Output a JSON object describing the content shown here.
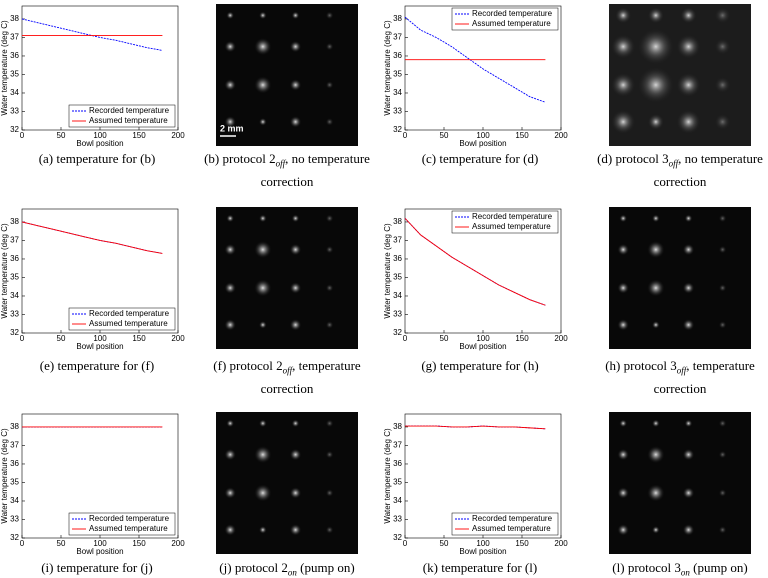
{
  "chart_data": [
    {
      "type": "line",
      "xlabel": "Bowl position",
      "ylabel": "Water temperature (deg C)",
      "x": [
        0,
        20,
        40,
        60,
        80,
        100,
        120,
        140,
        160,
        180
      ],
      "xlim": [
        0,
        200
      ],
      "xticks": [
        0,
        50,
        100,
        150,
        200
      ],
      "ylim": [
        32,
        38.7
      ],
      "yticks": [
        32,
        33,
        34,
        35,
        36,
        37,
        38
      ],
      "legend": "lower right",
      "series": [
        {
          "name": "Recorded temperature",
          "color": "#0000ff",
          "dashed": true,
          "values": [
            38.0,
            37.8,
            37.6,
            37.4,
            37.2,
            37.0,
            36.85,
            36.65,
            36.45,
            36.3
          ]
        },
        {
          "name": "Assumed temperature",
          "color": "#ff0000",
          "dashed": false,
          "values": [
            37.1,
            37.1,
            37.1,
            37.1,
            37.1,
            37.1,
            37.1,
            37.1,
            37.1,
            37.1
          ]
        }
      ],
      "caption": {
        "label": "(a)",
        "text": "temperature for (b)"
      }
    },
    {
      "type": "line",
      "xlabel": "Bowl position",
      "ylabel": "Water temperature (deg C)",
      "x": [
        0,
        20,
        40,
        60,
        80,
        100,
        120,
        140,
        160,
        180
      ],
      "xlim": [
        0,
        200
      ],
      "xticks": [
        0,
        50,
        100,
        150,
        200
      ],
      "ylim": [
        32,
        38.7
      ],
      "yticks": [
        32,
        33,
        34,
        35,
        36,
        37,
        38
      ],
      "legend": "upper right",
      "series": [
        {
          "name": "Recorded temperature",
          "color": "#0000ff",
          "dashed": true,
          "values": [
            38.1,
            37.4,
            37.0,
            36.5,
            35.9,
            35.3,
            34.8,
            34.3,
            33.8,
            33.5
          ]
        },
        {
          "name": "Assumed temperature",
          "color": "#ff0000",
          "dashed": false,
          "values": [
            35.8,
            35.8,
            35.8,
            35.8,
            35.8,
            35.8,
            35.8,
            35.8,
            35.8,
            35.8
          ]
        }
      ],
      "caption": {
        "label": "(c)",
        "text": "temperature for (d)"
      }
    },
    {
      "type": "line",
      "xlabel": "Bowl position",
      "ylabel": "Water temperature (deg C)",
      "x": [
        0,
        20,
        40,
        60,
        80,
        100,
        120,
        140,
        160,
        180
      ],
      "xlim": [
        0,
        200
      ],
      "xticks": [
        0,
        50,
        100,
        150,
        200
      ],
      "ylim": [
        32,
        38.7
      ],
      "yticks": [
        32,
        33,
        34,
        35,
        36,
        37,
        38
      ],
      "legend": "lower right",
      "series": [
        {
          "name": "Recorded temperature",
          "color": "#0000ff",
          "dashed": true,
          "values": [
            38.0,
            37.8,
            37.6,
            37.4,
            37.2,
            37.0,
            36.85,
            36.65,
            36.45,
            36.3
          ]
        },
        {
          "name": "Assumed temperature",
          "color": "#ff0000",
          "dashed": false,
          "values": [
            38.0,
            37.8,
            37.6,
            37.4,
            37.2,
            37.0,
            36.85,
            36.65,
            36.45,
            36.3
          ]
        }
      ],
      "caption": {
        "label": "(e)",
        "text": "temperature for (f)"
      }
    },
    {
      "type": "line",
      "xlabel": "Bowl position",
      "ylabel": "Water temperature (deg C)",
      "x": [
        0,
        20,
        40,
        60,
        80,
        100,
        120,
        140,
        160,
        180
      ],
      "xlim": [
        0,
        200
      ],
      "xticks": [
        0,
        50,
        100,
        150,
        200
      ],
      "ylim": [
        32,
        38.7
      ],
      "yticks": [
        32,
        33,
        34,
        35,
        36,
        37,
        38
      ],
      "legend": "upper right",
      "series": [
        {
          "name": "Recorded temperature",
          "color": "#0000ff",
          "dashed": true,
          "values": [
            38.2,
            37.3,
            36.7,
            36.1,
            35.6,
            35.1,
            34.6,
            34.2,
            33.8,
            33.5
          ]
        },
        {
          "name": "Assumed temperature",
          "color": "#ff0000",
          "dashed": false,
          "values": [
            38.2,
            37.3,
            36.7,
            36.1,
            35.6,
            35.1,
            34.6,
            34.2,
            33.8,
            33.5
          ]
        }
      ],
      "caption": {
        "label": "(g)",
        "text": "temperature for (h)"
      }
    },
    {
      "type": "line",
      "xlabel": "Bowl position",
      "ylabel": "Water temperature (deg C)",
      "x": [
        0,
        20,
        40,
        60,
        80,
        100,
        120,
        140,
        160,
        180
      ],
      "xlim": [
        0,
        200
      ],
      "xticks": [
        0,
        50,
        100,
        150,
        200
      ],
      "ylim": [
        32,
        38.7
      ],
      "yticks": [
        32,
        33,
        34,
        35,
        36,
        37,
        38
      ],
      "legend": "lower right",
      "series": [
        {
          "name": "Recorded temperature",
          "color": "#0000ff",
          "dashed": true,
          "values": [
            38.0,
            38.0,
            38.0,
            38.0,
            38.0,
            38.0,
            38.0,
            38.0,
            38.0,
            38.0
          ]
        },
        {
          "name": "Assumed temperature",
          "color": "#ff0000",
          "dashed": false,
          "values": [
            38.0,
            38.0,
            38.0,
            38.0,
            38.0,
            38.0,
            38.0,
            38.0,
            38.0,
            38.0
          ]
        }
      ],
      "caption": {
        "label": "(i)",
        "text": "temperature for (j)"
      }
    },
    {
      "type": "line",
      "xlabel": "Bowl position",
      "ylabel": "Water temperature (deg C)",
      "x": [
        0,
        20,
        40,
        60,
        80,
        100,
        120,
        140,
        160,
        180
      ],
      "xlim": [
        0,
        200
      ],
      "xticks": [
        0,
        50,
        100,
        150,
        200
      ],
      "ylim": [
        32,
        38.7
      ],
      "yticks": [
        32,
        33,
        34,
        35,
        36,
        37,
        38
      ],
      "legend": "lower right",
      "series": [
        {
          "name": "Recorded temperature",
          "color": "#0000ff",
          "dashed": true,
          "values": [
            38.05,
            38.05,
            38.05,
            38.0,
            38.0,
            38.05,
            38.0,
            38.0,
            37.95,
            37.9
          ]
        },
        {
          "name": "Assumed temperature",
          "color": "#ff0000",
          "dashed": false,
          "values": [
            38.05,
            38.05,
            38.05,
            38.0,
            38.0,
            38.05,
            38.0,
            38.0,
            37.95,
            37.9
          ]
        }
      ],
      "caption": {
        "label": "(k)",
        "text": "temperature for (l)"
      }
    }
  ],
  "images": [
    {
      "scale_bar": "2 mm",
      "caption": {
        "label": "(b)",
        "text": "protocol 2",
        "subscript": "off",
        "text_after": ", no temperature correction"
      }
    },
    {
      "caption": {
        "label": "(d)",
        "text": "protocol 3",
        "subscript": "off",
        "text_after": ", no temperature correction"
      }
    },
    {
      "caption": {
        "label": "(f)",
        "text": "protocol 2",
        "subscript": "off",
        "text_after": ", temperature correction"
      }
    },
    {
      "caption": {
        "label": "(h)",
        "text": "protocol 3",
        "subscript": "off",
        "text_after": ", temperature correction"
      }
    },
    {
      "caption": {
        "label": "(j)",
        "text": "protocol 2",
        "subscript": "on",
        "text_after": " (pump on)"
      }
    },
    {
      "caption": {
        "label": "(l)",
        "text": "protocol 3",
        "subscript": "on",
        "text_after": " (pump on)"
      }
    }
  ]
}
